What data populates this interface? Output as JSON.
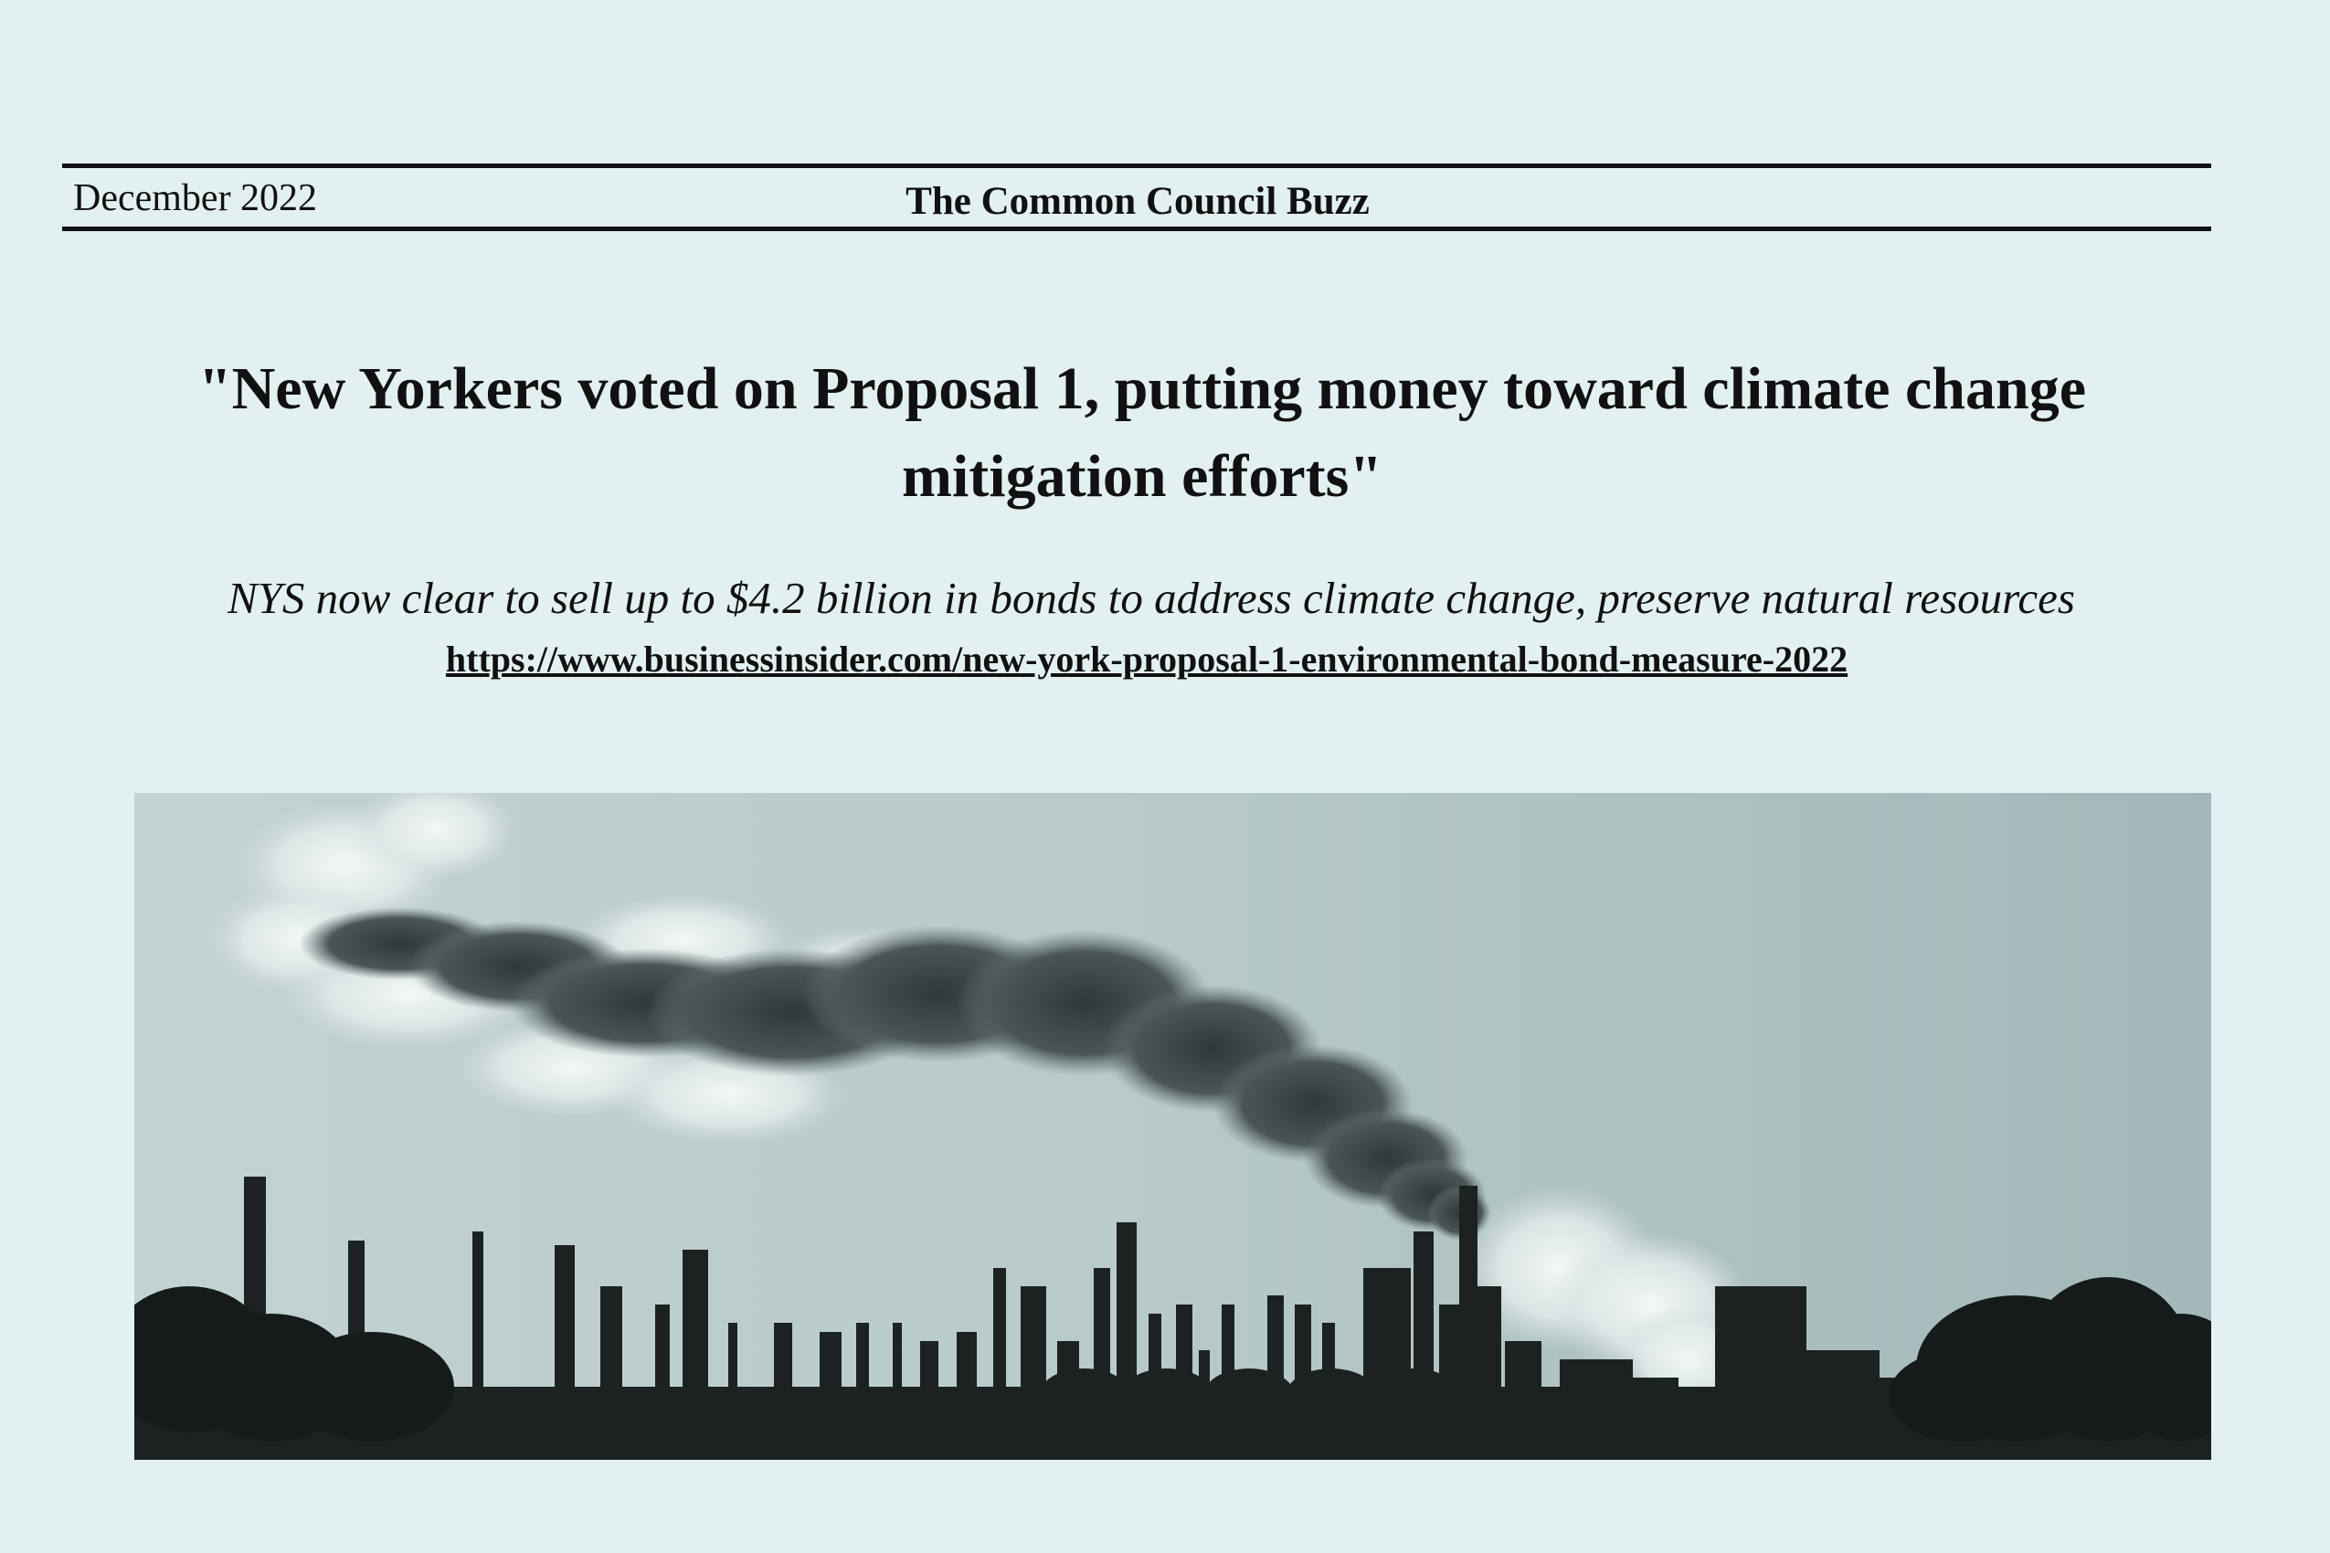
{
  "header": {
    "date": "December 2022",
    "publication": "The Common Council Buzz"
  },
  "article": {
    "headline": "\"New Yorkers voted on Proposal 1, putting money toward climate change mitigation efforts\"",
    "subheadline": "NYS now clear to sell up to $4.2 billion in bonds to address climate change, preserve natural resources",
    "link": "https://www.businessinsider.com/new-york-proposal-1-environmental-bond-measure-2022"
  },
  "image": {
    "subject": "industrial-refinery-smokestack-photo",
    "colors": {
      "sky": "#b9cbcb",
      "sky_dark": "#9fb4b4",
      "silhouette": "#1c2222",
      "smoke": "#3a4444",
      "steam": "#eef3f3"
    }
  },
  "colors": {
    "background": "#e3f0f1",
    "text": "#111111"
  }
}
